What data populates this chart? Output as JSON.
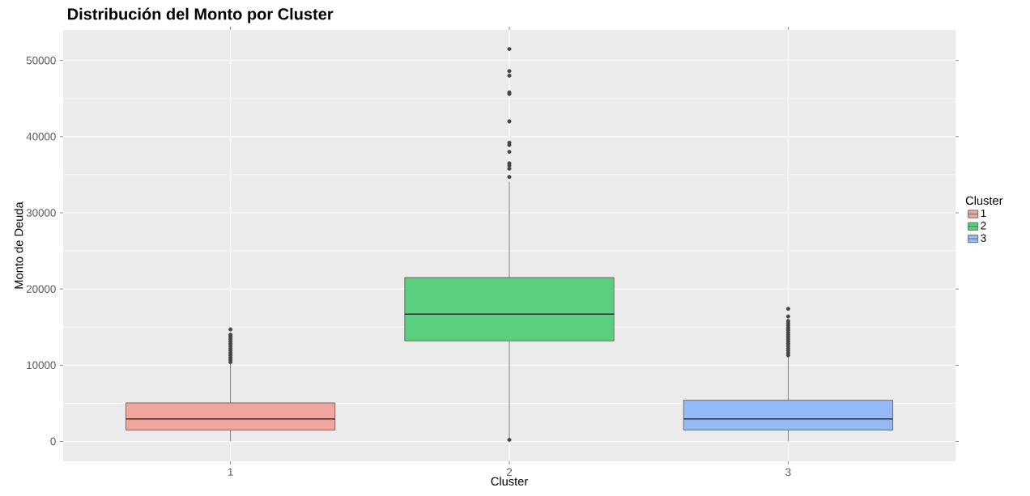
{
  "chart_data": {
    "type": "box",
    "title": "Distribución del Monto por Cluster",
    "xlabel": "Cluster",
    "ylabel": "Monto de Deuda",
    "legend_title": "Cluster",
    "categories": [
      "1",
      "2",
      "3"
    ],
    "series": [
      {
        "name": "1",
        "color": "#f2a59d",
        "boxes": [
          {
            "low": 0,
            "q1": 1500,
            "median": 2950,
            "q3": 5050,
            "high": 10300,
            "outliers": [
              10400,
              10700,
              11000,
              11300,
              11600,
              11900,
              12200,
              12500,
              12800,
              13100,
              13400,
              13700,
              14000,
              14700
            ]
          },
          null,
          null
        ]
      },
      {
        "name": "2",
        "color": "#5ccf7e",
        "boxes": [
          null,
          {
            "low": 400,
            "q1": 13200,
            "median": 16700,
            "q3": 21500,
            "high": 34100,
            "outliers": [
              200,
              34700,
              35800,
              36200,
              36500,
              38000,
              38900,
              39200,
              42000,
              45600,
              45800,
              48000,
              48600,
              51500
            ]
          },
          null
        ]
      },
      {
        "name": "3",
        "color": "#94baf8",
        "boxes": [
          null,
          null,
          {
            "low": 0,
            "q1": 1500,
            "median": 2950,
            "q3": 5400,
            "high": 11200,
            "outliers": [
              11300,
              11600,
              11900,
              12200,
              12500,
              12800,
              13100,
              13400,
              13700,
              14000,
              14300,
              14600,
              14900,
              15200,
              15500,
              15800,
              16400,
              17400
            ]
          }
        ]
      }
    ],
    "ylim": [
      -2600,
      54000
    ],
    "yticks": [
      0,
      10000,
      20000,
      30000,
      40000,
      50000
    ],
    "grid": true,
    "legend": "right"
  }
}
